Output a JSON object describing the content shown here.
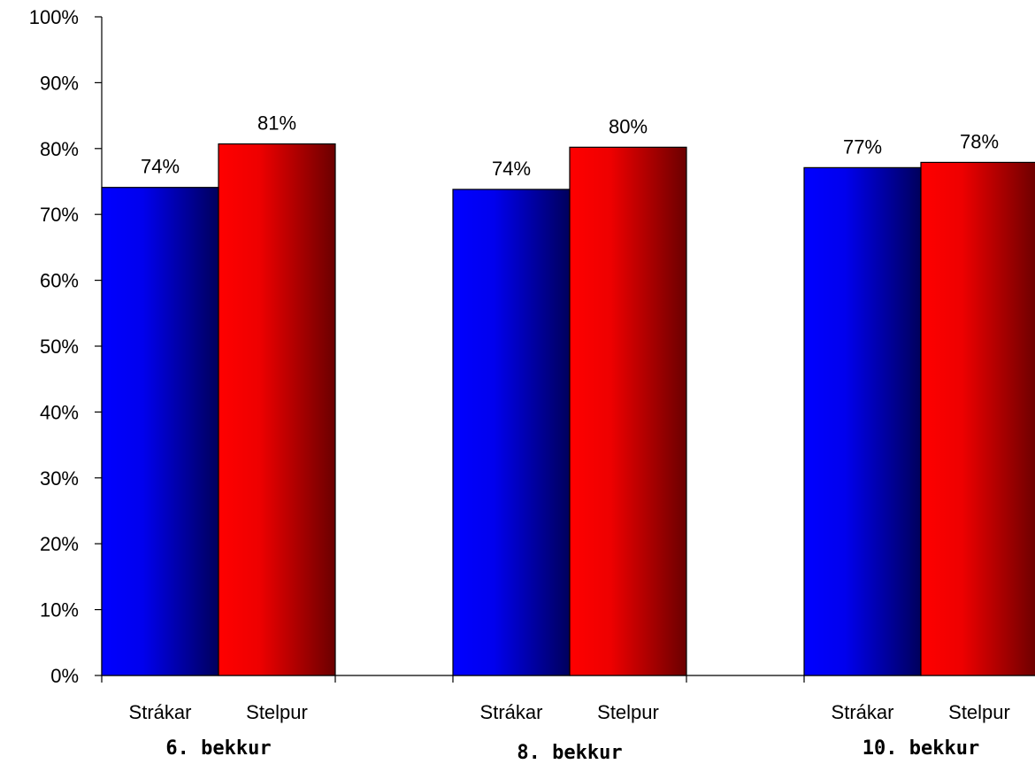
{
  "chart_data": {
    "type": "bar",
    "title": "",
    "xlabel": "",
    "ylabel": "",
    "ylim": [
      0,
      100
    ],
    "yticks": [
      "0%",
      "10%",
      "20%",
      "30%",
      "40%",
      "50%",
      "60%",
      "70%",
      "80%",
      "90%",
      "100%"
    ],
    "groups": [
      {
        "label": "6. bekkur",
        "bars": [
          {
            "category": "Strákar",
            "value": 74.1,
            "label": "74%",
            "color": "blue"
          },
          {
            "category": "Stelpur",
            "value": 80.7,
            "label": "81%",
            "color": "red"
          }
        ]
      },
      {
        "label": "8. bekkur",
        "bars": [
          {
            "category": "Strákar",
            "value": 73.8,
            "label": "74%",
            "color": "blue"
          },
          {
            "category": "Stelpur",
            "value": 80.2,
            "label": "80%",
            "color": "red"
          }
        ]
      },
      {
        "label": "10. bekkur",
        "bars": [
          {
            "category": "Strákar",
            "value": 77.1,
            "label": "77%",
            "color": "blue"
          },
          {
            "category": "Stelpur",
            "value": 77.9,
            "label": "78%",
            "color": "red"
          }
        ]
      }
    ],
    "colors": {
      "blue_light": "#0000ff",
      "blue_dark": "#00005c",
      "red_light": "#ff0000",
      "red_dark": "#6b0000"
    },
    "grid": false,
    "legend": "none"
  }
}
